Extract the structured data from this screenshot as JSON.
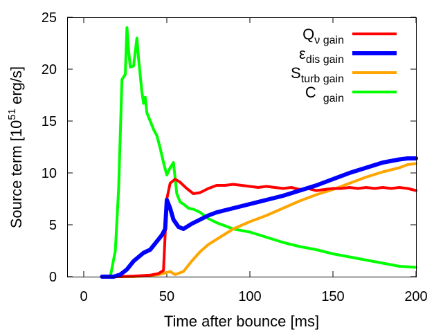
{
  "chart_data": {
    "type": "line",
    "title": "",
    "xlabel": "Time after bounce [ms]",
    "ylabel_parts": [
      "Source term [10",
      "51",
      " erg/s]"
    ],
    "xlim": [
      -10,
      200
    ],
    "ylim": [
      0,
      25
    ],
    "xticks": [
      0,
      50,
      100,
      150,
      200
    ],
    "yticks": [
      0,
      5,
      10,
      15,
      20,
      25
    ],
    "grid": false,
    "legend_position": "top-right",
    "series": [
      {
        "name": "Q_nu gain",
        "legend": {
          "main": "Q",
          "sub": "ν gain"
        },
        "color": "#ff0000",
        "x": [
          11,
          20,
          30,
          40,
          45,
          48,
          50,
          52,
          55,
          58,
          62,
          66,
          70,
          75,
          80,
          85,
          90,
          95,
          100,
          105,
          110,
          115,
          120,
          125,
          130,
          135,
          140,
          145,
          150,
          155,
          160,
          165,
          170,
          175,
          180,
          185,
          190,
          195,
          200
        ],
        "y": [
          0,
          0,
          0.05,
          0.15,
          0.3,
          0.6,
          7.5,
          9.0,
          9.4,
          9.1,
          8.5,
          8.0,
          8.1,
          8.5,
          8.8,
          8.8,
          8.9,
          8.8,
          8.7,
          8.6,
          8.7,
          8.6,
          8.5,
          8.6,
          8.4,
          8.5,
          8.3,
          8.4,
          8.5,
          8.5,
          8.6,
          8.5,
          8.6,
          8.5,
          8.6,
          8.5,
          8.6,
          8.5,
          8.3
        ]
      },
      {
        "name": "eps_dis gain",
        "legend": {
          "main": "ε",
          "sub": "dis gain"
        },
        "color": "#0000ff",
        "x": [
          11,
          18,
          22,
          26,
          30,
          33,
          36,
          40,
          44,
          47,
          49,
          50,
          52,
          54,
          57,
          60,
          65,
          70,
          75,
          80,
          85,
          90,
          100,
          110,
          120,
          130,
          140,
          150,
          160,
          170,
          180,
          190,
          195,
          200
        ],
        "y": [
          0,
          0,
          0.2,
          0.7,
          1.5,
          1.9,
          2.3,
          2.6,
          3.4,
          4.0,
          4.6,
          7.4,
          6.6,
          5.5,
          4.8,
          4.6,
          5.1,
          5.5,
          5.9,
          6.2,
          6.4,
          6.6,
          7.0,
          7.4,
          7.8,
          8.3,
          8.8,
          9.4,
          10.0,
          10.5,
          11.0,
          11.3,
          11.4,
          11.4
        ]
      },
      {
        "name": "S_turb gain",
        "legend": {
          "main": "S",
          "sub": "turb gain"
        },
        "color": "#ffa500",
        "x": [
          11,
          20,
          30,
          40,
          45,
          50,
          52,
          55,
          60,
          65,
          70,
          75,
          80,
          85,
          90,
          100,
          110,
          120,
          130,
          140,
          150,
          160,
          170,
          180,
          190,
          195,
          200
        ],
        "y": [
          0,
          0,
          0,
          0.1,
          0.2,
          0.4,
          0.5,
          0.2,
          0.5,
          1.5,
          2.4,
          3.1,
          3.6,
          4.1,
          4.6,
          5.3,
          5.9,
          6.6,
          7.3,
          7.9,
          8.4,
          9.0,
          9.6,
          10.1,
          10.5,
          10.8,
          10.9
        ]
      },
      {
        "name": "C gain",
        "legend": {
          "main": "C",
          "sub": "gain"
        },
        "color": "#00ff00",
        "x": [
          11,
          16,
          19,
          21,
          23,
          25,
          26,
          27,
          28,
          30,
          32,
          33,
          35,
          36,
          37,
          38,
          40,
          42,
          44,
          46,
          48,
          50,
          52,
          54,
          56,
          58,
          60,
          63,
          66,
          70,
          75,
          80,
          90,
          100,
          110,
          120,
          130,
          140,
          150,
          160,
          170,
          180,
          190,
          200
        ],
        "y": [
          0,
          0,
          2.5,
          8.5,
          19.0,
          19.5,
          24.0,
          21.8,
          20.2,
          20.3,
          23.0,
          21.0,
          17.8,
          16.7,
          17.3,
          15.8,
          15.0,
          14.2,
          13.6,
          12.4,
          11.0,
          9.8,
          10.5,
          11.0,
          8.0,
          7.2,
          7.0,
          6.6,
          6.5,
          6.2,
          5.6,
          5.2,
          4.6,
          4.3,
          3.8,
          3.3,
          2.9,
          2.6,
          2.2,
          1.9,
          1.6,
          1.3,
          1.0,
          0.9
        ]
      }
    ]
  }
}
